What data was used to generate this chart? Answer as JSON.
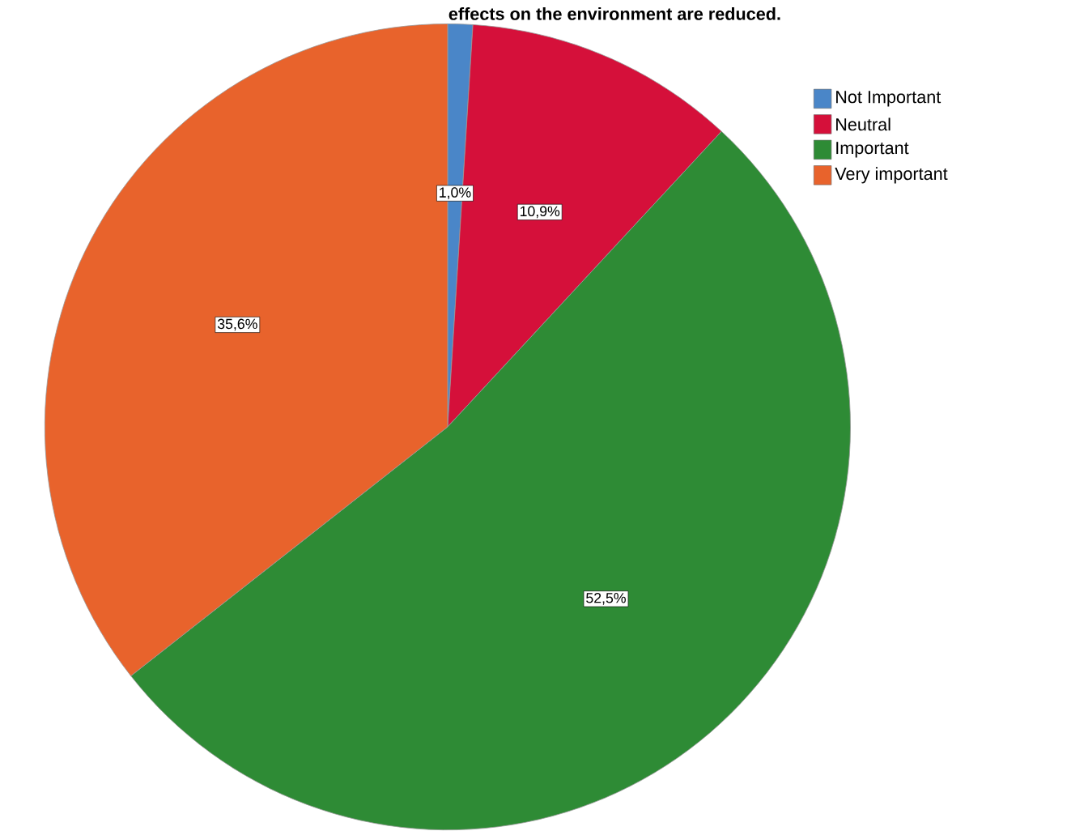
{
  "chart_data": {
    "type": "pie",
    "title": "effects on the environment are reduced.",
    "categories": [
      "Not Important",
      "Neutral",
      "Important",
      "Very important"
    ],
    "values": [
      1.0,
      10.9,
      52.5,
      35.6
    ],
    "colors": [
      "#4a86c8",
      "#d5103a",
      "#2e8b35",
      "#e8632c"
    ],
    "value_labels": [
      "1,0%",
      "10,9%",
      "52,5%",
      "35,6%"
    ],
    "legend": "top right"
  }
}
